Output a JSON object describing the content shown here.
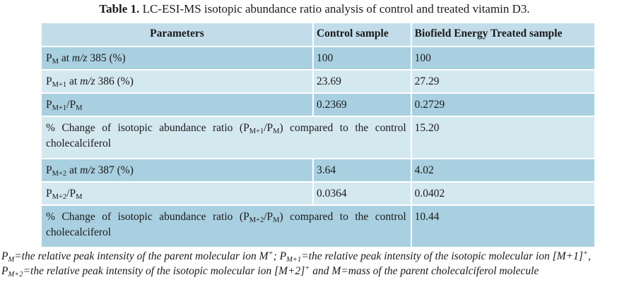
{
  "caption": {
    "label": "Table 1.",
    "text": " LC-ESI-MS isotopic abundance ratio analysis of control and treated vitamin D3."
  },
  "table": {
    "headers": [
      "Parameters",
      "Control sample",
      "Biofield Energy Treated sample"
    ],
    "rows": [
      {
        "p_base": "P",
        "p_sub": "M",
        "p_mid": " at ",
        "p_ital": "m/z",
        "p_tail": " 385 (%)",
        "control": "100",
        "treated": "100"
      },
      {
        "p_base": "P",
        "p_sub": "M+1",
        "p_mid": " at ",
        "p_ital": "m/z",
        "p_tail": " 386 (%)",
        "control": "23.69",
        "treated": "27.29"
      },
      {
        "p_base": "P",
        "p_sub": "M+1",
        "p_slash": "/P",
        "p_sub2": "M",
        "control": "0.2369",
        "treated": "0.2729"
      },
      {
        "p_pre": "% Change of isotopic abundance ratio (P",
        "p_sub": "M+1",
        "p_slash": "/P",
        "p_sub2": "M",
        "p_post": ") compared to the control cholecalciferol",
        "control": "",
        "treated": "15.20"
      },
      {
        "p_base": "P",
        "p_sub": "M+2",
        "p_mid": " at ",
        "p_ital": "m/z",
        "p_tail": " 387 (%)",
        "control": "3.64",
        "treated": "4.02"
      },
      {
        "p_base": "P",
        "p_sub": "M+2",
        "p_slash": "/P",
        "p_sub2": "M",
        "control": "0.0364",
        "treated": "0.0402"
      },
      {
        "p_pre": "% Change of isotopic abundance ratio (P",
        "p_sub": "M+2",
        "p_slash": "/P",
        "p_sub2": "M",
        "p_post": ") compared to the control cholecalciferol",
        "control": "",
        "treated": "10.44"
      }
    ]
  },
  "footnote": {
    "s1": "P",
    "s1_sub": "M",
    "s2": "=the relative peak intensity of the parent molecular ion M",
    "s2_sup": "+",
    "s3": "; P",
    "s3_sub": "M+1",
    "s4": "=the relative peak intensity of the isotopic molecular ion [M+1]",
    "s4_sup": "+",
    "s5": ", P",
    "s5_sub": "M+2",
    "s6": "=the relative peak intensity of the isotopic molecular ion [M+2]",
    "s6_sup": "+",
    "s7": " and M=mass of the parent cholecalciferol molecule"
  }
}
